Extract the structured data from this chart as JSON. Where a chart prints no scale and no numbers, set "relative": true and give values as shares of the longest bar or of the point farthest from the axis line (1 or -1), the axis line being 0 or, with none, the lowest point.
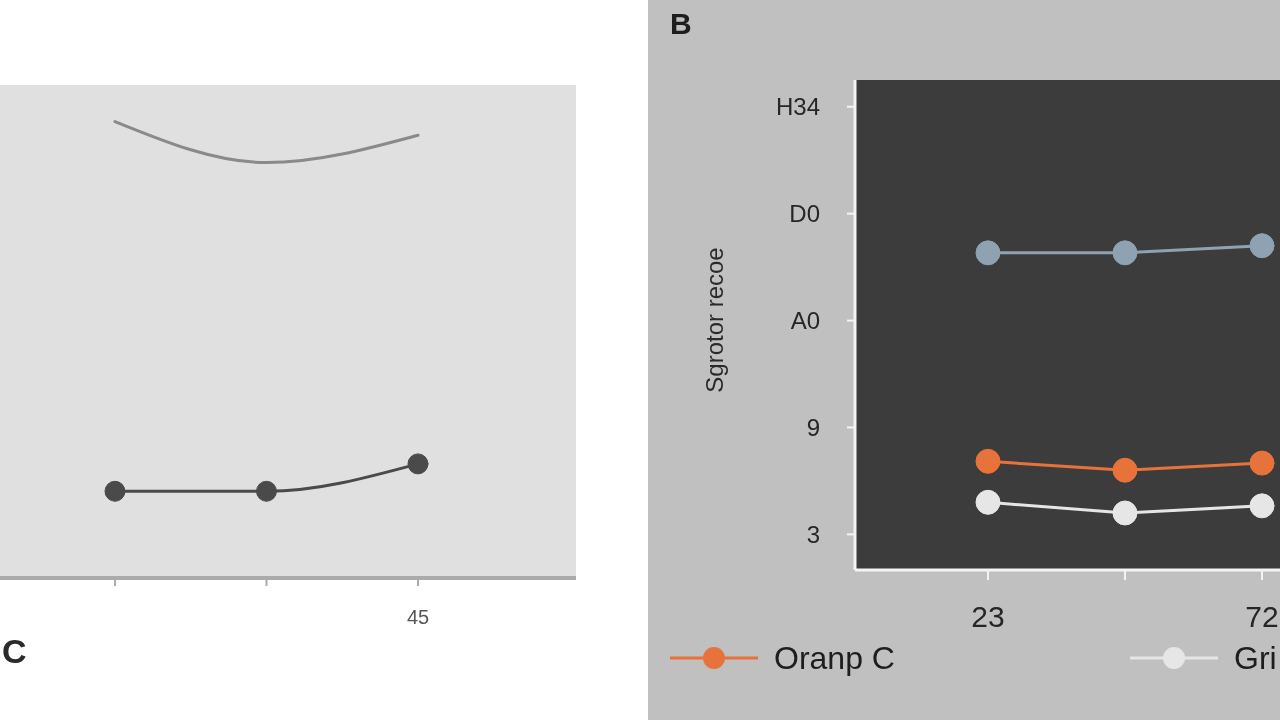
{
  "chart_data": [
    {
      "type": "line",
      "categories": [
        null,
        null,
        null
      ],
      "relative": true,
      "marker": "circle",
      "annotations": [
        "C",
        "45"
      ],
      "series": [
        {
          "color": "#8a8a8a",
          "marker": "none",
          "values": [
            1,
            0.91,
            0.97
          ]
        },
        {
          "color": "#4a4a4a",
          "values": [
            0.19,
            0.19,
            0.25
          ]
        }
      ]
    },
    {
      "type": "line",
      "title": "B",
      "ylabel": "Sgrotor recoe",
      "categories": [
        "23",
        null,
        "72"
      ],
      "ylim": [
        1,
        28.5
      ],
      "yticks": [
        3,
        9,
        {
          "value": 15,
          "label": "A0"
        },
        {
          "value": 21,
          "label": "D0"
        },
        {
          "value": 27,
          "label": "H34"
        }
      ],
      "marker": "circle",
      "legend": "bottom",
      "series": [
        {
          "color": "#8ea2b2",
          "values": [
            18.8,
            18.8,
            19.2
          ]
        },
        {
          "name": "Oranp C",
          "color": "#e8733a",
          "values": [
            7.1,
            6.6,
            7.0
          ]
        },
        {
          "name": "Gri",
          "color": "#e6e6e6",
          "values": [
            4.8,
            4.2,
            4.6
          ]
        }
      ]
    }
  ]
}
